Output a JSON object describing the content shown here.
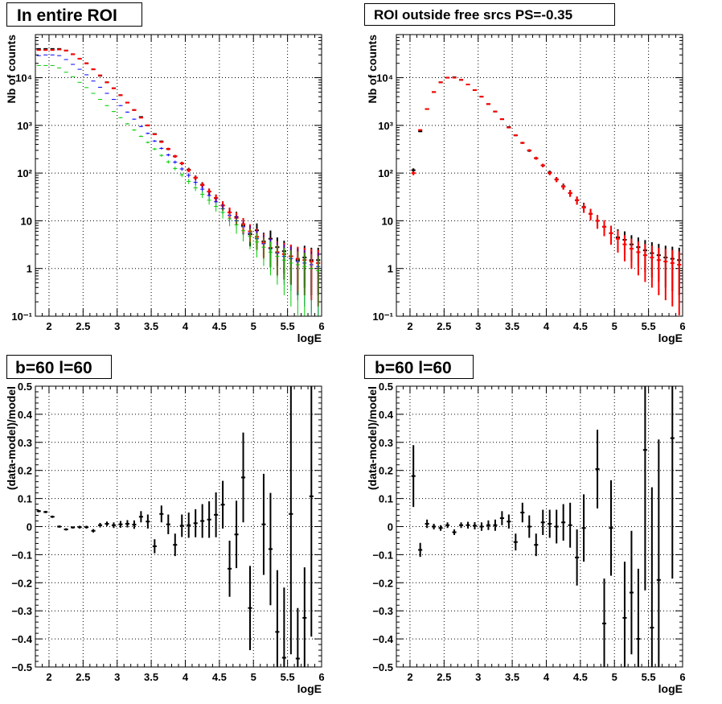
{
  "panels": [
    {
      "title": "In entire ROI",
      "xlabel": "logE",
      "ylabel": "Nb of counts"
    },
    {
      "title": "ROI outside free srcs PS=-0.35",
      "xlabel": "logE",
      "ylabel": "Nb of counts"
    },
    {
      "title": "b=60 l=60",
      "xlabel": "logE",
      "ylabel": "(data-model)/model"
    },
    {
      "title": "b=60 l=60",
      "xlabel": "logE",
      "ylabel": "(data-model)/model"
    }
  ],
  "colors": {
    "data": "#000000",
    "model_total": "#ff0000",
    "model_blue": "#0000ff",
    "model_green": "#00cc00",
    "grid": "#000000"
  },
  "chart_data": [
    {
      "type": "scatter",
      "title": "In entire ROI",
      "xlabel": "logE",
      "ylabel": "Nb of counts",
      "xlim": [
        1.8,
        6.0
      ],
      "ylim": [
        0.1,
        80000
      ],
      "yscale": "log",
      "xticks": [
        2,
        2.5,
        3,
        3.5,
        4,
        4.5,
        5,
        5.5,
        6
      ],
      "xtick_labels": [
        "2",
        "2.5",
        "3",
        "3.5",
        "4",
        "4.5",
        "5",
        "5.5",
        "6"
      ],
      "yticks": [
        0.1,
        1,
        10,
        100,
        1000,
        10000
      ],
      "ytick_labels": [
        "10⁻¹",
        "1",
        "10",
        "10²",
        "10³",
        "10⁴"
      ],
      "grid": true,
      "bin_width": 0.1,
      "x": [
        1.85,
        1.95,
        2.05,
        2.15,
        2.25,
        2.35,
        2.45,
        2.55,
        2.65,
        2.75,
        2.85,
        2.95,
        3.05,
        3.15,
        3.25,
        3.35,
        3.45,
        3.55,
        3.65,
        3.75,
        3.85,
        3.95,
        4.05,
        4.15,
        4.25,
        4.35,
        4.45,
        4.55,
        4.65,
        4.75,
        4.85,
        4.95,
        5.05,
        5.15,
        5.25,
        5.35,
        5.45,
        5.55,
        5.65,
        5.75,
        5.85,
        5.95
      ],
      "series": [
        {
          "name": "",
          "role": "data",
          "color": "#000000",
          "errors": true,
          "values": [
            40000,
            40000,
            40000,
            40000,
            37000,
            31000,
            25000,
            20000,
            15000,
            11000,
            8000,
            6000,
            4300,
            3000,
            2100,
            1500,
            1000,
            660,
            460,
            320,
            225,
            160,
            118,
            80,
            57,
            41,
            30,
            21,
            15,
            12,
            8,
            5.2,
            6.3,
            3.7,
            4.2,
            2.8,
            2.3,
            1.8,
            1.5,
            1.7,
            1.5,
            1.5
          ]
        },
        {
          "name": "",
          "role": "model total",
          "color": "#ff0000",
          "errors": true,
          "values": [
            38000,
            38000,
            38000,
            39000,
            37000,
            31000,
            25000,
            20000,
            15000,
            11200,
            8000,
            6000,
            4300,
            3000,
            2100,
            1450,
            1000,
            650,
            450,
            320,
            225,
            160,
            115,
            80,
            56,
            41,
            30,
            21,
            15,
            11.5,
            8.5,
            6,
            4.6,
            3.5,
            2.7,
            2.2,
            2,
            1.8,
            1.6,
            1.5,
            1.4,
            1.3
          ]
        },
        {
          "name": "",
          "role": "model component",
          "color": "#0000ff",
          "errors": true,
          "values": [
            29000,
            30000,
            30000,
            29000,
            24000,
            19000,
            15000,
            11500,
            8500,
            6300,
            4700,
            3500,
            2600,
            1900,
            1350,
            950,
            680,
            470,
            330,
            240,
            170,
            122,
            90,
            64,
            46,
            34,
            25,
            18,
            13,
            10,
            7.5,
            5.5,
            4.2,
            3.3,
            2.6,
            2.1,
            1.8,
            1.6,
            1.4,
            1.3,
            1.2,
            1.1
          ]
        },
        {
          "name": "",
          "role": "model component",
          "color": "#00cc00",
          "errors": true,
          "values": [
            18000,
            18000,
            18000,
            16000,
            13000,
            10500,
            8000,
            6200,
            4700,
            3500,
            2600,
            1950,
            1450,
            1080,
            800,
            590,
            440,
            320,
            235,
            172,
            125,
            92,
            67,
            49,
            36,
            27,
            20,
            15,
            11,
            8.2,
            6.2,
            4.7,
            3.6,
            2.8,
            2.2,
            1.8,
            1.5,
            1.3,
            1.2,
            1.1,
            1,
            0.9
          ]
        }
      ]
    },
    {
      "type": "scatter",
      "title": "ROI outside free srcs PS=-0.35",
      "xlabel": "logE",
      "ylabel": "Nb of counts",
      "xlim": [
        1.8,
        6.0
      ],
      "ylim": [
        0.1,
        80000
      ],
      "yscale": "log",
      "xticks": [
        2,
        2.5,
        3,
        3.5,
        4,
        4.5,
        5,
        5.5,
        6
      ],
      "xtick_labels": [
        "2",
        "2.5",
        "3",
        "3.5",
        "4",
        "4.5",
        "5",
        "5.5",
        "6"
      ],
      "yticks": [
        0.1,
        1,
        10,
        100,
        1000,
        10000
      ],
      "ytick_labels": [
        "10⁻¹",
        "1",
        "10",
        "10²",
        "10³",
        "10⁴"
      ],
      "grid": true,
      "bin_width": 0.1,
      "x": [
        2.05,
        2.15,
        2.25,
        2.35,
        2.45,
        2.55,
        2.65,
        2.75,
        2.85,
        2.95,
        3.05,
        3.15,
        3.25,
        3.35,
        3.45,
        3.55,
        3.65,
        3.75,
        3.85,
        3.95,
        4.05,
        4.15,
        4.25,
        4.35,
        4.45,
        4.55,
        4.65,
        4.75,
        4.85,
        4.95,
        5.05,
        5.15,
        5.25,
        5.35,
        5.45,
        5.55,
        5.65,
        5.75,
        5.85,
        5.95
      ],
      "series": [
        {
          "name": "",
          "role": "data",
          "color": "#000000",
          "errors": true,
          "values": [
            115,
            750,
            2200,
            5000,
            8000,
            10000,
            10200,
            9000,
            7200,
            5500,
            4000,
            2800,
            1950,
            1350,
            920,
            620,
            430,
            295,
            205,
            145,
            103,
            74,
            53,
            38,
            27,
            19.5,
            14,
            10,
            7.5,
            5.5,
            4.5,
            4,
            3.2,
            2.8,
            2.4,
            2.1,
            1.9,
            1.7,
            1.6,
            1.5
          ]
        },
        {
          "name": "",
          "role": "model total",
          "color": "#ff0000",
          "errors": true,
          "values": [
            100,
            800,
            2200,
            5000,
            8000,
            10000,
            10000,
            9000,
            7200,
            5500,
            4000,
            2800,
            1950,
            1350,
            900,
            620,
            430,
            300,
            205,
            145,
            100,
            73,
            52,
            38,
            27,
            19,
            14,
            10,
            7.5,
            5.5,
            4.2,
            3.2,
            2.6,
            2.2,
            1.9,
            1.7,
            1.5,
            1.4,
            1.3,
            1.2
          ]
        }
      ]
    },
    {
      "type": "scatter",
      "title": "b=60 l=60",
      "xlabel": "logE",
      "ylabel": "(data-model)/model",
      "xlim": [
        1.8,
        6.0
      ],
      "ylim": [
        -0.5,
        0.5
      ],
      "yscale": "linear",
      "xticks": [
        2,
        2.5,
        3,
        3.5,
        4,
        4.5,
        5,
        5.5,
        6
      ],
      "xtick_labels": [
        "2",
        "2.5",
        "3",
        "3.5",
        "4",
        "4.5",
        "5",
        "5.5",
        "6"
      ],
      "yticks": [
        -0.5,
        -0.4,
        -0.3,
        -0.2,
        -0.1,
        0,
        0.1,
        0.2,
        0.3,
        0.4,
        0.5
      ],
      "ytick_labels": [
        "−0.5",
        "−0.4",
        "−0.3",
        "−0.2",
        "−0.1",
        "0",
        "0.1",
        "0.2",
        "0.3",
        "0.4",
        "0.5"
      ],
      "grid": true,
      "bin_width": 0.1,
      "x": [
        1.85,
        1.95,
        2.05,
        2.15,
        2.25,
        2.35,
        2.45,
        2.55,
        2.65,
        2.75,
        2.85,
        2.95,
        3.05,
        3.15,
        3.25,
        3.35,
        3.45,
        3.55,
        3.65,
        3.75,
        3.85,
        3.95,
        4.05,
        4.15,
        4.25,
        4.35,
        4.45,
        4.55,
        4.65,
        4.75,
        4.85,
        4.95,
        5.05,
        5.15,
        5.25,
        5.35,
        5.45,
        5.55,
        5.65,
        5.75,
        5.85,
        5.95
      ],
      "series": [
        {
          "name": "",
          "role": "data",
          "color": "#000000",
          "values": [
            0.055,
            0.052,
            0.035,
            0.0,
            -0.01,
            -0.003,
            -0.002,
            -0.002,
            -0.015,
            0.005,
            0.01,
            0.005,
            0.008,
            0.01,
            0.007,
            0.035,
            0.018,
            -0.07,
            0.045,
            0.008,
            -0.065,
            0.003,
            0.005,
            0.012,
            0.02,
            0.025,
            0.042,
            0.078,
            -0.15,
            -0.028,
            0.175,
            -0.29,
            0.008,
            -0.08,
            -0.375,
            -0.467,
            0.045,
            -0.47,
            -0.325,
            0.108
          ],
          "err": [
            0.004,
            0.004,
            0.004,
            0.004,
            0.004,
            0.004,
            0.005,
            0.005,
            0.006,
            0.008,
            0.008,
            0.01,
            0.012,
            0.013,
            0.015,
            0.02,
            0.025,
            0.025,
            0.03,
            0.035,
            0.04,
            0.04,
            0.045,
            0.05,
            0.06,
            0.065,
            0.08,
            0.085,
            0.1,
            0.12,
            0.16,
            0.15,
            0.18,
            0.2,
            0.22,
            0.25,
            0.5,
            0.18,
            0.18,
            0.5
          ],
          "x_override": [
            1.85,
            1.95,
            2.05,
            2.15,
            2.25,
            2.35,
            2.45,
            2.55,
            2.65,
            2.75,
            2.85,
            2.95,
            3.05,
            3.15,
            3.25,
            3.35,
            3.45,
            3.55,
            3.65,
            3.75,
            3.85,
            3.95,
            4.05,
            4.15,
            4.25,
            4.35,
            4.45,
            4.55,
            4.65,
            4.75,
            4.85,
            4.95,
            5.15,
            5.25,
            5.35,
            5.45,
            5.55,
            5.65,
            5.75,
            5.85
          ]
        }
      ]
    },
    {
      "type": "scatter",
      "title": "b=60 l=60",
      "xlabel": "logE",
      "ylabel": "(data-model)/model",
      "xlim": [
        1.8,
        6.0
      ],
      "ylim": [
        -0.5,
        0.5
      ],
      "yscale": "linear",
      "xticks": [
        2,
        2.5,
        3,
        3.5,
        4,
        4.5,
        5,
        5.5,
        6
      ],
      "xtick_labels": [
        "2",
        "2.5",
        "3",
        "3.5",
        "4",
        "4.5",
        "5",
        "5.5",
        "6"
      ],
      "yticks": [
        -0.5,
        -0.4,
        -0.3,
        -0.2,
        -0.1,
        0,
        0.1,
        0.2,
        0.3,
        0.4,
        0.5
      ],
      "ytick_labels": [
        "−0.5",
        "−0.4",
        "−0.3",
        "−0.2",
        "−0.1",
        "0",
        "0.1",
        "0.2",
        "0.3",
        "0.4",
        "0.5"
      ],
      "grid": true,
      "bin_width": 0.1,
      "x": [
        2.05,
        2.15,
        2.25,
        2.35,
        2.45,
        2.55,
        2.65,
        2.75,
        2.85,
        2.95,
        3.05,
        3.15,
        3.25,
        3.35,
        3.45,
        3.55,
        3.65,
        3.75,
        3.85,
        3.95,
        4.05,
        4.15,
        4.25,
        4.35,
        4.45,
        4.55,
        4.65,
        4.75,
        4.85,
        4.95,
        5.05,
        5.15,
        5.25,
        5.35,
        5.45,
        5.55,
        5.65,
        5.75,
        5.85,
        5.95
      ],
      "series": [
        {
          "name": "",
          "role": "data",
          "color": "#000000",
          "values": [
            0.18,
            -0.083,
            0.01,
            0.0,
            -0.005,
            0.005,
            -0.02,
            0.005,
            0.005,
            0.003,
            0.0,
            0.005,
            0.005,
            0.03,
            0.018,
            -0.055,
            0.05,
            0.0,
            -0.065,
            0.015,
            0.01,
            0.0,
            0.015,
            0.005,
            -0.11,
            -0.005,
            0.205,
            -0.345,
            -0.005,
            -0.325,
            -0.235,
            -0.4,
            0.273,
            -0.36,
            -0.19,
            0.315
          ],
          "err": [
            0.11,
            0.025,
            0.015,
            0.01,
            0.01,
            0.01,
            0.01,
            0.01,
            0.012,
            0.013,
            0.015,
            0.017,
            0.02,
            0.025,
            0.025,
            0.03,
            0.035,
            0.04,
            0.04,
            0.045,
            0.05,
            0.06,
            0.065,
            0.08,
            0.1,
            0.12,
            0.14,
            0.16,
            0.17,
            0.2,
            0.22,
            0.25,
            0.5,
            0.5,
            0.5,
            0.5
          ],
          "x_override": [
            2.05,
            2.15,
            2.25,
            2.35,
            2.45,
            2.55,
            2.65,
            2.75,
            2.85,
            2.95,
            3.05,
            3.15,
            3.25,
            3.35,
            3.45,
            3.55,
            3.65,
            3.75,
            3.85,
            3.95,
            4.05,
            4.15,
            4.25,
            4.35,
            4.45,
            4.55,
            4.75,
            4.85,
            4.95,
            5.15,
            5.25,
            5.35,
            5.45,
            5.55,
            5.65,
            5.85
          ]
        }
      ]
    }
  ]
}
